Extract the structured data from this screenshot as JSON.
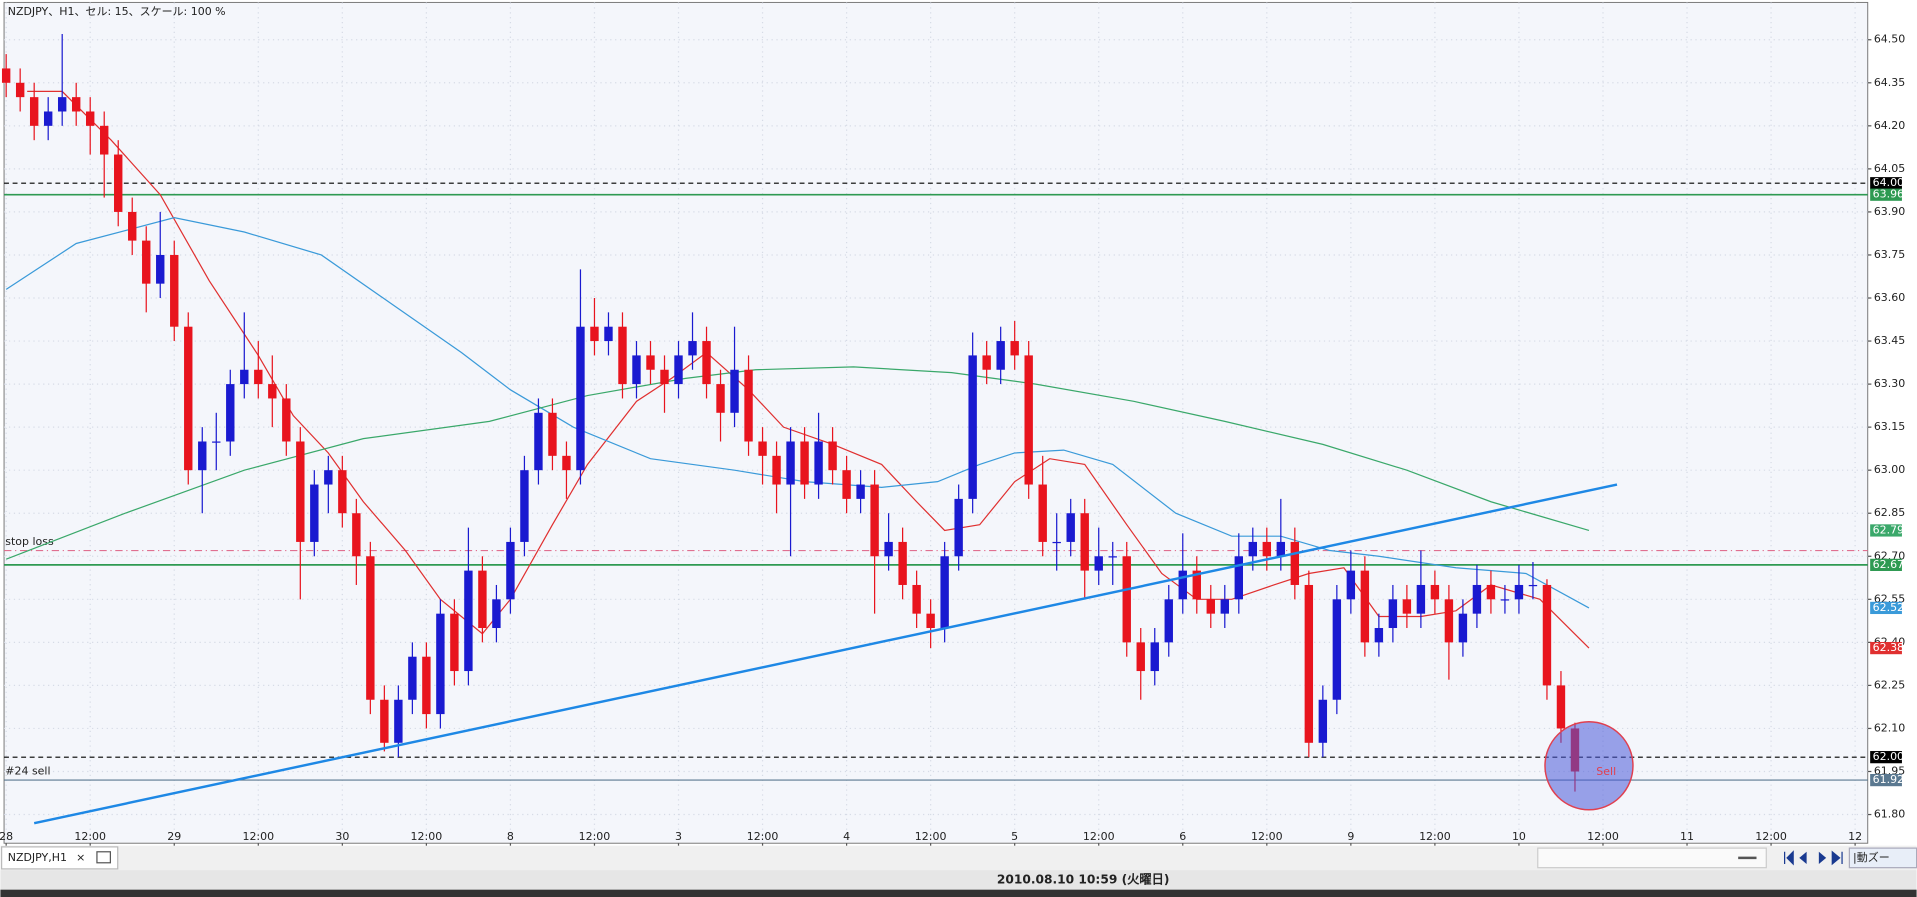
{
  "window_title": "NZDJPY、H1、セル: 15、スケール: 100 %",
  "tab": "NZDJPY,H1",
  "status": "2010.08.10 10:59 (火曜日)",
  "autozoom": "|動ズー",
  "chart_data": {
    "type": "candlestick",
    "up_color": "#1a1ad0",
    "down_color": "#e8141e",
    "grid": true,
    "xlim": [
      -0.3,
      265.8
    ],
    "ylim": [
      61.7,
      64.63
    ],
    "xticks": [
      {
        "value": 0,
        "label": "28"
      },
      {
        "value": 12,
        "label": "12:00"
      },
      {
        "value": 24,
        "label": "29"
      },
      {
        "value": 36,
        "label": "12:00"
      },
      {
        "value": 48,
        "label": "30"
      },
      {
        "value": 60,
        "label": "12:00"
      },
      {
        "value": 72,
        "label": "8"
      },
      {
        "value": 84,
        "label": "12:00"
      },
      {
        "value": 96,
        "label": "3"
      },
      {
        "value": 108,
        "label": "12:00"
      },
      {
        "value": 120,
        "label": "4"
      },
      {
        "value": 132,
        "label": "12:00"
      },
      {
        "value": 144,
        "label": "5"
      },
      {
        "value": 156,
        "label": "12:00"
      },
      {
        "value": 168,
        "label": "6"
      },
      {
        "value": 180,
        "label": "12:00"
      },
      {
        "value": 192,
        "label": "9"
      },
      {
        "value": 204,
        "label": "12:00"
      },
      {
        "value": 216,
        "label": "10"
      },
      {
        "value": 228,
        "label": "12:00"
      },
      {
        "value": 240,
        "label": "11"
      },
      {
        "value": 252,
        "label": "12:00"
      },
      {
        "value": 264,
        "label": "12"
      }
    ],
    "yticks": [
      {
        "value": 64.5,
        "label": "64.50"
      },
      64.35,
      {
        "value": 64.2,
        "label": "64.20"
      },
      64.05,
      {
        "value": 63.9,
        "label": "63.90"
      },
      63.75,
      {
        "value": 63.6,
        "label": "63.60"
      },
      63.45,
      {
        "value": 63.3,
        "label": "63.30"
      },
      63.15,
      {
        "value": 63,
        "label": "63.00"
      },
      62.85,
      {
        "value": 62.7,
        "label": "62.70"
      },
      62.55,
      {
        "value": 62.4,
        "label": "62.40"
      },
      62.25,
      {
        "value": 62.1,
        "label": "62.10"
      },
      61.95,
      {
        "value": 61.8,
        "label": "61.80"
      }
    ],
    "x": [
      0,
      2,
      4,
      6,
      8,
      10,
      12,
      14,
      16,
      18,
      20,
      22,
      24,
      26,
      28,
      30,
      32,
      34,
      36,
      38,
      40,
      42,
      44,
      46,
      48,
      50,
      52,
      54,
      56,
      58,
      60,
      62,
      64,
      66,
      68,
      70,
      72,
      74,
      76,
      78,
      80,
      82,
      84,
      86,
      88,
      90,
      92,
      94,
      96,
      98,
      100,
      102,
      104,
      106,
      108,
      110,
      112,
      114,
      116,
      118,
      120,
      122,
      124,
      126,
      128,
      130,
      132,
      134,
      136,
      138,
      140,
      142,
      144,
      146,
      148,
      150,
      152,
      154,
      156,
      158,
      160,
      162,
      164,
      166,
      168,
      170,
      172,
      174,
      176,
      178,
      180,
      182,
      184,
      186,
      188,
      190,
      192,
      194,
      196,
      198,
      200,
      202,
      204,
      206,
      208,
      210,
      212,
      214,
      216,
      218,
      220,
      222,
      224
    ],
    "candles": [
      [
        64.4,
        64.45,
        64.3,
        64.35
      ],
      [
        64.35,
        64.4,
        64.25,
        64.3
      ],
      [
        64.3,
        64.35,
        64.15,
        64.2
      ],
      [
        64.2,
        64.3,
        64.15,
        64.25
      ],
      [
        64.25,
        64.52,
        64.2,
        64.3
      ],
      [
        64.3,
        64.35,
        64.2,
        64.25
      ],
      [
        64.25,
        64.3,
        64.1,
        64.2
      ],
      [
        64.2,
        64.25,
        63.95,
        64.1
      ],
      [
        64.1,
        64.15,
        63.85,
        63.9
      ],
      [
        63.9,
        63.95,
        63.75,
        63.8
      ],
      [
        63.8,
        63.85,
        63.55,
        63.65
      ],
      [
        63.65,
        63.9,
        63.6,
        63.75
      ],
      [
        63.75,
        63.8,
        63.45,
        63.5
      ],
      [
        63.5,
        63.55,
        62.95,
        63.0
      ],
      [
        63.0,
        63.15,
        62.85,
        63.1
      ],
      [
        63.1,
        63.2,
        63.0,
        63.1
      ],
      [
        63.1,
        63.35,
        63.05,
        63.3
      ],
      [
        63.3,
        63.55,
        63.25,
        63.35
      ],
      [
        63.35,
        63.45,
        63.25,
        63.3
      ],
      [
        63.3,
        63.4,
        63.15,
        63.25
      ],
      [
        63.25,
        63.3,
        63.05,
        63.1
      ],
      [
        63.1,
        63.15,
        62.55,
        62.75
      ],
      [
        62.75,
        63.0,
        62.7,
        62.95
      ],
      [
        62.95,
        63.05,
        62.85,
        63.0
      ],
      [
        63.0,
        63.05,
        62.8,
        62.85
      ],
      [
        62.85,
        62.9,
        62.6,
        62.7
      ],
      [
        62.7,
        62.75,
        62.15,
        62.2
      ],
      [
        62.2,
        62.25,
        62.02,
        62.05
      ],
      [
        62.05,
        62.25,
        62.0,
        62.2
      ],
      [
        62.2,
        62.4,
        62.15,
        62.35
      ],
      [
        62.35,
        62.4,
        62.1,
        62.15
      ],
      [
        62.15,
        62.55,
        62.1,
        62.5
      ],
      [
        62.5,
        62.55,
        62.25,
        62.3
      ],
      [
        62.3,
        62.8,
        62.25,
        62.65
      ],
      [
        62.65,
        62.7,
        62.4,
        62.45
      ],
      [
        62.45,
        62.6,
        62.4,
        62.55
      ],
      [
        62.55,
        62.8,
        62.5,
        62.75
      ],
      [
        62.75,
        63.05,
        62.7,
        63.0
      ],
      [
        63.0,
        63.25,
        62.95,
        63.2
      ],
      [
        63.2,
        63.25,
        63.0,
        63.05
      ],
      [
        63.05,
        63.1,
        62.9,
        63.0
      ],
      [
        63.0,
        63.7,
        62.95,
        63.5
      ],
      [
        63.5,
        63.6,
        63.4,
        63.45
      ],
      [
        63.45,
        63.55,
        63.4,
        63.5
      ],
      [
        63.5,
        63.55,
        63.25,
        63.3
      ],
      [
        63.3,
        63.45,
        63.25,
        63.4
      ],
      [
        63.4,
        63.45,
        63.3,
        63.35
      ],
      [
        63.35,
        63.4,
        63.2,
        63.3
      ],
      [
        63.3,
        63.45,
        63.25,
        63.4
      ],
      [
        63.4,
        63.55,
        63.35,
        63.45
      ],
      [
        63.45,
        63.5,
        63.25,
        63.3
      ],
      [
        63.3,
        63.35,
        63.1,
        63.2
      ],
      [
        63.2,
        63.5,
        63.15,
        63.35
      ],
      [
        63.35,
        63.4,
        63.05,
        63.1
      ],
      [
        63.1,
        63.15,
        62.95,
        63.05
      ],
      [
        63.05,
        63.1,
        62.85,
        62.95
      ],
      [
        62.95,
        63.15,
        62.7,
        63.1
      ],
      [
        63.1,
        63.15,
        62.9,
        62.95
      ],
      [
        62.95,
        63.2,
        62.9,
        63.1
      ],
      [
        63.1,
        63.15,
        62.95,
        63.0
      ],
      [
        63.0,
        63.05,
        62.85,
        62.9
      ],
      [
        62.9,
        63.0,
        62.85,
        62.95
      ],
      [
        62.95,
        63.0,
        62.5,
        62.7
      ],
      [
        62.7,
        62.85,
        62.65,
        62.75
      ],
      [
        62.75,
        62.8,
        62.55,
        62.6
      ],
      [
        62.6,
        62.65,
        62.45,
        62.5
      ],
      [
        62.5,
        62.55,
        62.38,
        62.45
      ],
      [
        62.45,
        62.75,
        62.4,
        62.7
      ],
      [
        62.7,
        62.95,
        62.65,
        62.9
      ],
      [
        62.9,
        63.48,
        62.85,
        63.4
      ],
      [
        63.4,
        63.45,
        63.3,
        63.35
      ],
      [
        63.35,
        63.5,
        63.3,
        63.45
      ],
      [
        63.45,
        63.52,
        63.35,
        63.4
      ],
      [
        63.4,
        63.45,
        62.9,
        62.95
      ],
      [
        62.95,
        63.05,
        62.7,
        62.75
      ],
      [
        62.75,
        62.85,
        62.65,
        62.75
      ],
      [
        62.75,
        62.9,
        62.7,
        62.85
      ],
      [
        62.85,
        62.9,
        62.55,
        62.65
      ],
      [
        62.65,
        62.8,
        62.6,
        62.7
      ],
      [
        62.7,
        62.75,
        62.6,
        62.7
      ],
      [
        62.7,
        62.75,
        62.35,
        62.4
      ],
      [
        62.4,
        62.45,
        62.2,
        62.3
      ],
      [
        62.3,
        62.45,
        62.25,
        62.4
      ],
      [
        62.4,
        62.6,
        62.35,
        62.55
      ],
      [
        62.55,
        62.78,
        62.5,
        62.65
      ],
      [
        62.65,
        62.7,
        62.5,
        62.55
      ],
      [
        62.55,
        62.6,
        62.45,
        62.5
      ],
      [
        62.5,
        62.6,
        62.45,
        62.55
      ],
      [
        62.55,
        62.78,
        62.5,
        62.7
      ],
      [
        62.7,
        62.8,
        62.65,
        62.75
      ],
      [
        62.75,
        62.8,
        62.65,
        62.7
      ],
      [
        62.7,
        62.9,
        62.65,
        62.75
      ],
      [
        62.75,
        62.8,
        62.55,
        62.6
      ],
      [
        62.6,
        62.65,
        62.0,
        62.05
      ],
      [
        62.05,
        62.25,
        62.0,
        62.2
      ],
      [
        62.2,
        62.6,
        62.15,
        62.55
      ],
      [
        62.55,
        62.72,
        62.5,
        62.65
      ],
      [
        62.65,
        62.7,
        62.35,
        62.4
      ],
      [
        62.4,
        62.5,
        62.35,
        62.45
      ],
      [
        62.45,
        62.6,
        62.4,
        62.55
      ],
      [
        62.55,
        62.6,
        62.45,
        62.5
      ],
      [
        62.5,
        62.72,
        62.45,
        62.6
      ],
      [
        62.6,
        62.65,
        62.5,
        62.55
      ],
      [
        62.55,
        62.6,
        62.27,
        62.4
      ],
      [
        62.4,
        62.55,
        62.35,
        62.5
      ],
      [
        62.5,
        62.67,
        62.45,
        62.6
      ],
      [
        62.6,
        62.65,
        62.5,
        62.55
      ],
      [
        62.55,
        62.6,
        62.5,
        62.55
      ],
      [
        62.55,
        62.67,
        62.5,
        62.6
      ],
      [
        62.6,
        62.68,
        62.55,
        62.6
      ],
      [
        62.6,
        62.62,
        62.2,
        62.25
      ],
      [
        62.25,
        62.3,
        62.05,
        62.1
      ],
      [
        62.1,
        62.12,
        61.88,
        61.95
      ]
    ],
    "series": [
      {
        "color": "#e03030",
        "x": [
          3,
          8,
          15,
          22,
          29,
          36,
          41,
          46,
          51,
          57,
          62,
          68,
          72,
          78,
          83,
          90,
          95,
          100,
          106,
          111,
          118,
          125,
          130,
          134,
          139,
          144,
          149,
          154,
          160,
          165,
          170,
          175,
          181,
          186,
          191,
          196,
          202,
          207,
          212,
          219,
          226
        ],
        "values": [
          64.32,
          64.32,
          64.15,
          63.96,
          63.66,
          63.4,
          63.19,
          63.06,
          62.89,
          62.72,
          62.55,
          62.43,
          62.55,
          62.81,
          63.02,
          63.24,
          63.32,
          63.41,
          63.28,
          63.15,
          63.09,
          63.02,
          62.89,
          62.79,
          62.81,
          62.96,
          63.04,
          63.02,
          62.81,
          62.64,
          62.55,
          62.55,
          62.6,
          62.64,
          62.66,
          62.49,
          62.49,
          62.51,
          62.6,
          62.55,
          62.38
        ]
      },
      {
        "color": "#3a9ad9",
        "x": [
          0,
          10,
          24,
          34,
          45,
          55,
          65,
          72,
          81,
          92,
          104,
          114,
          125,
          133,
          139,
          144,
          151,
          158,
          167,
          175,
          182,
          189,
          196,
          207,
          217,
          226
        ],
        "values": [
          63.63,
          63.79,
          63.88,
          63.83,
          63.75,
          63.58,
          63.41,
          63.28,
          63.15,
          63.04,
          63.0,
          62.96,
          62.94,
          62.96,
          63.02,
          63.06,
          63.07,
          63.02,
          62.85,
          62.77,
          62.77,
          62.72,
          62.7,
          62.66,
          62.64,
          62.52
        ]
      },
      {
        "color": "#3aa86a",
        "x": [
          0,
          17,
          34,
          51,
          69,
          83,
          97,
          107,
          121,
          135,
          147,
          161,
          174,
          188,
          200,
          212,
          226
        ],
        "values": [
          62.69,
          62.85,
          63.0,
          63.11,
          63.17,
          63.26,
          63.32,
          63.35,
          63.36,
          63.34,
          63.3,
          63.24,
          63.17,
          63.09,
          63.0,
          62.89,
          62.79
        ]
      }
    ],
    "trendline": {
      "color": "#1e88e5",
      "x": [
        4,
        230
      ],
      "values": [
        61.77,
        62.95
      ]
    },
    "levels": [
      {
        "value": 64,
        "label": "64.00",
        "color": "#000000",
        "style": "dash"
      },
      {
        "value": 63.96,
        "color": "#2e9a52",
        "style": "solid"
      },
      {
        "value": 62.72,
        "color": "#e07090",
        "style": "dashdot",
        "name": "stop loss",
        "price_tag": false
      },
      {
        "value": 62.67,
        "color": "#2e9a52",
        "style": "solid"
      },
      {
        "value": 62,
        "label": "62.00",
        "color": "#000000",
        "style": "dash"
      },
      {
        "value": 61.92,
        "color": "#5a7890",
        "style": "thin",
        "name": "#24 sell"
      }
    ],
    "annotations": [
      {
        "text": "Sell",
        "x": 226,
        "y": 61.97,
        "color": "#e04050",
        "fill": "#4a5ad8"
      }
    ]
  }
}
